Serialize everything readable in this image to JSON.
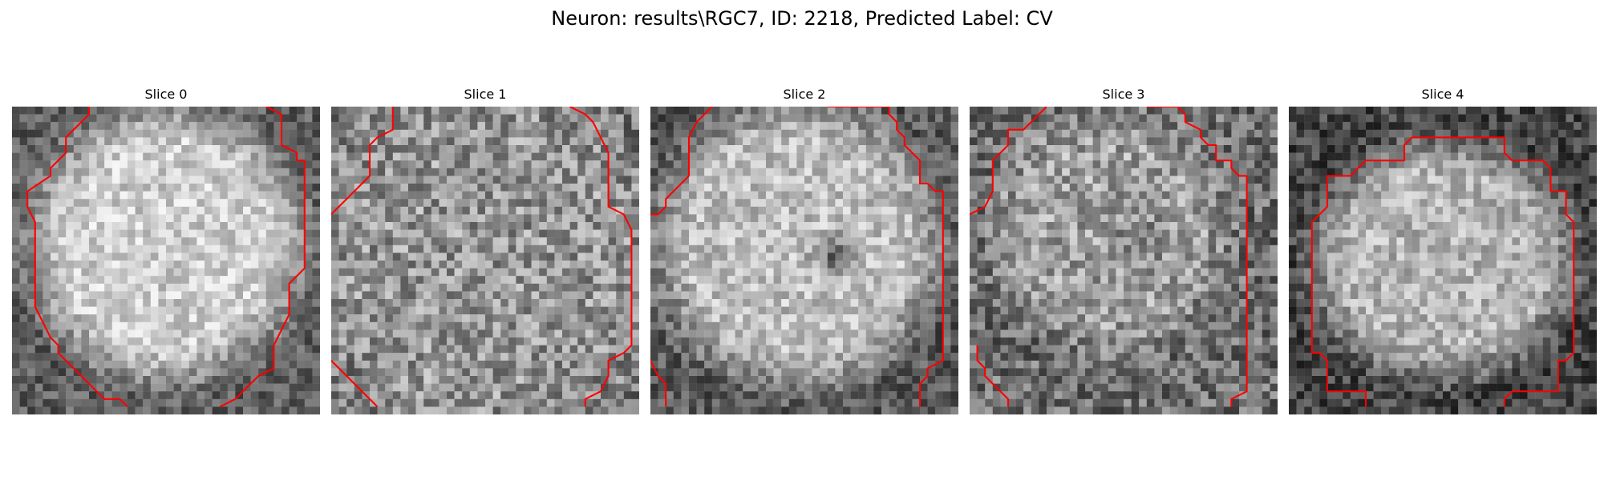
{
  "figure": {
    "title": "Neuron: results\\RGC7, ID: 2218, Predicted Label: CV"
  },
  "slices": [
    {
      "title": "Slice 0",
      "gray_field": {
        "seed": 11,
        "center": [
          0.5,
          0.45
        ],
        "radius": [
          0.46,
          0.46
        ],
        "inner": 205,
        "outer": 95,
        "noise": 42,
        "dark_spots": []
      },
      "contours": [
        [
          [
            10,
            0
          ],
          [
            10,
            1
          ],
          [
            9,
            2
          ],
          [
            8,
            3
          ],
          [
            7,
            4
          ],
          [
            7,
            6
          ],
          [
            5,
            8
          ],
          [
            5,
            9
          ],
          [
            2,
            11
          ],
          [
            2,
            13
          ],
          [
            3,
            15
          ],
          [
            3,
            26
          ],
          [
            4,
            28
          ],
          [
            5,
            30
          ],
          [
            6,
            31
          ],
          [
            6,
            32
          ],
          [
            7,
            33
          ],
          [
            8,
            34
          ],
          [
            9,
            35
          ],
          [
            10,
            36
          ],
          [
            11,
            37
          ],
          [
            12,
            38
          ],
          [
            14,
            38
          ],
          [
            15,
            39
          ]
        ],
        [
          [
            33,
            0
          ],
          [
            35,
            1
          ],
          [
            35,
            5
          ],
          [
            37,
            6
          ],
          [
            37,
            7
          ],
          [
            38,
            7
          ],
          [
            38,
            21
          ],
          [
            37,
            22
          ],
          [
            36,
            23
          ],
          [
            36,
            27
          ],
          [
            35,
            29
          ],
          [
            34,
            31
          ],
          [
            34,
            34
          ],
          [
            32,
            35
          ],
          [
            31,
            36
          ],
          [
            30,
            37
          ],
          [
            29,
            38
          ],
          [
            27,
            39
          ]
        ]
      ]
    },
    {
      "title": "Slice 1",
      "gray_field": {
        "seed": 23,
        "center": [
          0.5,
          0.5
        ],
        "radius": [
          0.6,
          0.6
        ],
        "inner": 150,
        "outer": 120,
        "noise": 60,
        "dark_spots": []
      },
      "contours": [
        [
          [
            8,
            0
          ],
          [
            8,
            3
          ],
          [
            6,
            4
          ],
          [
            5,
            5
          ],
          [
            5,
            9
          ],
          [
            4,
            10
          ],
          [
            3,
            11
          ],
          [
            2,
            12
          ],
          [
            1,
            13
          ],
          [
            0,
            14
          ]
        ],
        [
          [
            31,
            0
          ],
          [
            33,
            1
          ],
          [
            34,
            2
          ],
          [
            35,
            4
          ],
          [
            36,
            6
          ],
          [
            36,
            13
          ],
          [
            38,
            14
          ],
          [
            39,
            16
          ],
          [
            39,
            31
          ],
          [
            38,
            32
          ],
          [
            36,
            33
          ],
          [
            36,
            35
          ],
          [
            35,
            37
          ],
          [
            33,
            38
          ],
          [
            33,
            39
          ]
        ],
        [
          [
            0,
            33
          ],
          [
            3,
            36
          ],
          [
            4,
            37
          ],
          [
            5,
            38
          ],
          [
            6,
            39
          ]
        ]
      ]
    },
    {
      "title": "Slice 2",
      "gray_field": {
        "seed": 37,
        "center": [
          0.48,
          0.45
        ],
        "radius": [
          0.48,
          0.48
        ],
        "inner": 190,
        "outer": 90,
        "noise": 45,
        "dark_spots": [
          [
            0.6,
            0.48,
            0.1,
            95
          ]
        ]
      },
      "contours": [
        [
          [
            8,
            0
          ],
          [
            7,
            1
          ],
          [
            6,
            2
          ],
          [
            5,
            4
          ],
          [
            5,
            9
          ],
          [
            4,
            10
          ],
          [
            3,
            11
          ],
          [
            2,
            12
          ],
          [
            2,
            13
          ],
          [
            1,
            14
          ],
          [
            0,
            14
          ]
        ],
        [
          [
            23,
            0
          ],
          [
            31,
            0
          ],
          [
            31,
            1
          ],
          [
            32,
            2
          ],
          [
            32,
            3
          ],
          [
            33,
            4
          ],
          [
            33,
            5
          ],
          [
            34,
            6
          ],
          [
            35,
            7
          ],
          [
            35,
            10
          ],
          [
            36,
            10
          ],
          [
            37,
            11
          ],
          [
            38,
            11
          ],
          [
            38,
            33
          ],
          [
            36,
            34
          ],
          [
            36,
            35
          ],
          [
            35,
            36
          ],
          [
            35,
            39
          ]
        ],
        [
          [
            0,
            33
          ],
          [
            1,
            35
          ],
          [
            2,
            36
          ],
          [
            2,
            39
          ]
        ]
      ]
    },
    {
      "title": "Slice 3",
      "gray_field": {
        "seed": 53,
        "center": [
          0.45,
          0.4
        ],
        "radius": [
          0.4,
          0.4
        ],
        "inner": 160,
        "outer": 110,
        "noise": 58,
        "dark_spots": [
          [
            0.55,
            0.45,
            0.14,
            40
          ]
        ]
      },
      "contours": [
        [
          [
            10,
            0
          ],
          [
            9,
            1
          ],
          [
            8,
            2
          ],
          [
            7,
            3
          ],
          [
            5,
            3
          ],
          [
            5,
            5
          ],
          [
            4,
            6
          ],
          [
            3,
            7
          ],
          [
            3,
            11
          ],
          [
            2,
            13
          ],
          [
            0,
            14
          ]
        ],
        [
          [
            23,
            0
          ],
          [
            27,
            0
          ],
          [
            28,
            1
          ],
          [
            28,
            2
          ],
          [
            30,
            3
          ],
          [
            30,
            4
          ],
          [
            31,
            5
          ],
          [
            32,
            5
          ],
          [
            32,
            7
          ],
          [
            34,
            7
          ],
          [
            34,
            8
          ],
          [
            35,
            9
          ],
          [
            36,
            9
          ],
          [
            36,
            37
          ],
          [
            34,
            38
          ],
          [
            34,
            39
          ]
        ],
        [
          [
            1,
            31
          ],
          [
            1,
            33
          ],
          [
            2,
            34
          ],
          [
            2,
            35
          ],
          [
            3,
            36
          ],
          [
            4,
            37
          ],
          [
            5,
            38
          ],
          [
            5,
            39
          ]
        ]
      ]
    },
    {
      "title": "Slice 4",
      "gray_field": {
        "seed": 71,
        "center": [
          0.5,
          0.5
        ],
        "radius": [
          0.44,
          0.4
        ],
        "inner": 180,
        "outer": 70,
        "noise": 45,
        "dark_spots": []
      },
      "contours": [
        [
          [
            10,
            39
          ],
          [
            10,
            37
          ],
          [
            5,
            37
          ],
          [
            5,
            33
          ],
          [
            4,
            32
          ],
          [
            3,
            32
          ],
          [
            3,
            15
          ],
          [
            4,
            14
          ],
          [
            5,
            13
          ],
          [
            5,
            9
          ],
          [
            8,
            9
          ],
          [
            9,
            8
          ],
          [
            10,
            7
          ],
          [
            15,
            7
          ],
          [
            15,
            5
          ],
          [
            16,
            4
          ],
          [
            28,
            4
          ],
          [
            28,
            6
          ],
          [
            29,
            7
          ],
          [
            33,
            7
          ],
          [
            34,
            8
          ],
          [
            34,
            11
          ],
          [
            36,
            11
          ],
          [
            36,
            14
          ],
          [
            37,
            15
          ],
          [
            37,
            32
          ],
          [
            36,
            33
          ],
          [
            35,
            33
          ],
          [
            35,
            37
          ],
          [
            29,
            37
          ],
          [
            28,
            38
          ],
          [
            28,
            39
          ]
        ]
      ]
    }
  ],
  "contour_color": "#ff0000"
}
